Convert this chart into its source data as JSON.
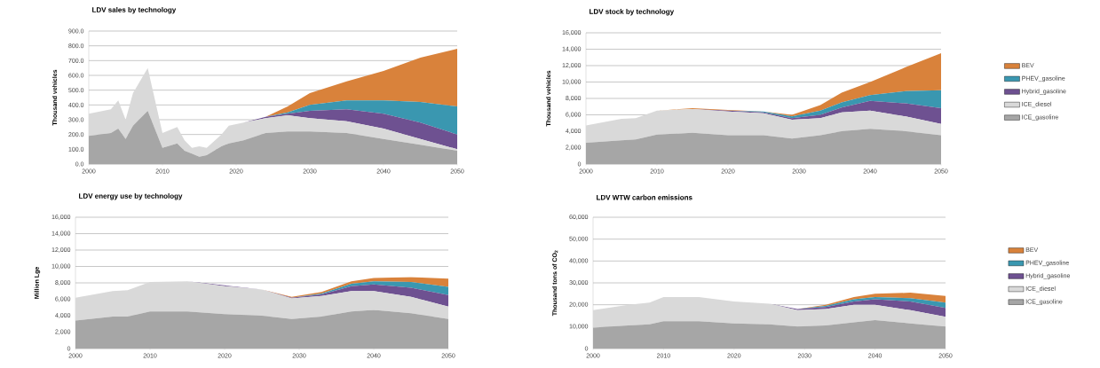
{
  "chart_data": [
    {
      "type": "area",
      "stacked": true,
      "title": "LDV sales by technology",
      "ylabel": "Thousand vehicles",
      "grid": "y",
      "legend": false,
      "x": [
        2000,
        2003,
        2004,
        2005,
        2006,
        2008,
        2010,
        2012,
        2013,
        2014,
        2015,
        2016,
        2018,
        2019,
        2021,
        2024,
        2027,
        2030,
        2035,
        2040,
        2045,
        2050
      ],
      "xlim": [
        2000,
        2050
      ],
      "xticks": [
        2000,
        2010,
        2020,
        2030,
        2040,
        2050
      ],
      "ylim": [
        0,
        900
      ],
      "yticks": [
        {
          "value": 0,
          "label": "0.0"
        },
        {
          "value": 100,
          "label": "100.0"
        },
        {
          "value": 200,
          "label": "200.0"
        },
        {
          "value": 300,
          "label": "300.0"
        },
        {
          "value": 400,
          "label": "400.0"
        },
        {
          "value": 500,
          "label": "500.0"
        },
        {
          "value": 600,
          "label": "600.0"
        },
        {
          "value": 700,
          "label": "700.0"
        },
        {
          "value": 800,
          "label": "800.0"
        },
        {
          "value": 900,
          "label": "900.0"
        }
      ],
      "series": [
        {
          "color": "#a6a6a6",
          "values": [
            190,
            210,
            240,
            170,
            260,
            360,
            110,
            140,
            90,
            70,
            50,
            60,
            120,
            140,
            160,
            210,
            220,
            220,
            210,
            170,
            130,
            90
          ]
        },
        {
          "color": "#d9d9d9",
          "values": [
            150,
            160,
            190,
            130,
            220,
            290,
            100,
            110,
            70,
            40,
            70,
            50,
            80,
            120,
            120,
            100,
            110,
            90,
            80,
            70,
            40,
            10
          ]
        },
        {
          "color": "#6e5191",
          "values": [
            0,
            0,
            0,
            0,
            0,
            0,
            0,
            0,
            0,
            0,
            0,
            0,
            0,
            0,
            0,
            10,
            10,
            50,
            80,
            100,
            110,
            100
          ]
        },
        {
          "color": "#3a97b0",
          "values": [
            0,
            0,
            0,
            0,
            0,
            0,
            0,
            0,
            0,
            0,
            0,
            0,
            0,
            0,
            0,
            0,
            10,
            40,
            60,
            90,
            140,
            190
          ]
        },
        {
          "color": "#d9823b",
          "values": [
            0,
            0,
            0,
            0,
            0,
            0,
            0,
            0,
            0,
            0,
            0,
            0,
            0,
            0,
            0,
            0,
            40,
            80,
            130,
            200,
            300,
            390
          ]
        }
      ]
    },
    {
      "type": "area",
      "stacked": true,
      "title": "LDV stock by technology",
      "ylabel": "Thousand vehicles",
      "grid": "y",
      "legend": "right",
      "x": [
        2000,
        2005,
        2007,
        2010,
        2015,
        2020,
        2025,
        2029,
        2033,
        2036,
        2040,
        2045,
        2050
      ],
      "xlim": [
        2000,
        2050
      ],
      "xticks": [
        2000,
        2010,
        2020,
        2030,
        2040,
        2050
      ],
      "ylim": [
        0,
        16000
      ],
      "yticks": [
        0,
        {
          "value": 2000,
          "label": "2,000"
        },
        {
          "value": 4000,
          "label": "4,000"
        },
        {
          "value": 6000,
          "label": "6,000"
        },
        {
          "value": 8000,
          "label": "8,000"
        },
        {
          "value": 10000,
          "label": "10,000"
        },
        {
          "value": 12000,
          "label": "12,000"
        },
        {
          "value": 14000,
          "label": "14,000"
        },
        {
          "value": 16000,
          "label": "16,000"
        }
      ],
      "series": [
        {
          "name": "ICE_gasoline",
          "color": "#a6a6a6",
          "values": [
            2600,
            2900,
            3000,
            3600,
            3800,
            3500,
            3500,
            3100,
            3500,
            4000,
            4300,
            4000,
            3500
          ]
        },
        {
          "name": "ICE_diesel",
          "color": "#d9d9d9",
          "values": [
            2100,
            2600,
            2600,
            2900,
            2900,
            2900,
            2700,
            2300,
            2100,
            2300,
            2200,
            1800,
            1400
          ]
        },
        {
          "name": "Hybrid_gasoline",
          "color": "#6e5191",
          "values": [
            0,
            0,
            0,
            0,
            0,
            100,
            100,
            200,
            400,
            600,
            1200,
            1600,
            1900
          ]
        },
        {
          "name": "PHEV_gasoline",
          "color": "#3a97b0",
          "values": [
            0,
            0,
            0,
            0,
            0,
            0,
            100,
            200,
            500,
            600,
            700,
            1500,
            2200
          ]
        },
        {
          "name": "BEV",
          "color": "#d9823b",
          "values": [
            0,
            0,
            0,
            0,
            100,
            100,
            0,
            200,
            700,
            1200,
            1600,
            2900,
            4500
          ]
        }
      ]
    },
    {
      "type": "area",
      "stacked": true,
      "title": "LDV energy use by technology",
      "ylabel": "Million Lge",
      "grid": "y",
      "legend": false,
      "x": [
        2000,
        2005,
        2007,
        2010,
        2015,
        2020,
        2025,
        2029,
        2033,
        2037,
        2040,
        2045,
        2050
      ],
      "xlim": [
        2000,
        2050
      ],
      "xticks": [
        2000,
        2010,
        2020,
        2030,
        2040,
        2050
      ],
      "ylim": [
        0,
        16000
      ],
      "yticks": [
        0,
        {
          "value": 2000,
          "label": "2,000"
        },
        {
          "value": 4000,
          "label": "4,000"
        },
        {
          "value": 6000,
          "label": "6,000"
        },
        {
          "value": 8000,
          "label": "8,000"
        },
        {
          "value": 10000,
          "label": "10,000"
        },
        {
          "value": 12000,
          "label": "12,000"
        },
        {
          "value": 14000,
          "label": "14,000"
        },
        {
          "value": 16000,
          "label": "16,000"
        }
      ],
      "series": [
        {
          "color": "#a6a6a6",
          "values": [
            3400,
            3900,
            3900,
            4500,
            4500,
            4200,
            4000,
            3600,
            3900,
            4500,
            4700,
            4300,
            3600
          ]
        },
        {
          "color": "#d9d9d9",
          "values": [
            2800,
            3100,
            3200,
            3600,
            3700,
            3400,
            3200,
            2500,
            2500,
            2500,
            2300,
            2000,
            1500
          ]
        },
        {
          "color": "#6e5191",
          "values": [
            0,
            0,
            0,
            0,
            0,
            100,
            0,
            100,
            200,
            600,
            800,
            1100,
            1400
          ]
        },
        {
          "color": "#3a97b0",
          "values": [
            0,
            0,
            0,
            0,
            0,
            0,
            0,
            0,
            100,
            300,
            400,
            700,
            1000
          ]
        },
        {
          "color": "#d9823b",
          "values": [
            0,
            0,
            0,
            0,
            0,
            0,
            0,
            100,
            200,
            300,
            400,
            600,
            1000
          ]
        }
      ]
    },
    {
      "type": "area",
      "stacked": true,
      "title": "LDV  WTW carbon emissions",
      "ylabel": "Thousand tons of CO$_{2}$",
      "grid": "y",
      "legend": "right",
      "x": [
        2000,
        2005,
        2008,
        2010,
        2015,
        2020,
        2025,
        2029,
        2033,
        2037,
        2040,
        2045,
        2050
      ],
      "xlim": [
        2000,
        2050
      ],
      "xticks": [
        2000,
        2010,
        2020,
        2030,
        2040,
        2050
      ],
      "ylim": [
        0,
        60000
      ],
      "yticks": [
        0,
        {
          "value": 10000,
          "label": "10,000"
        },
        {
          "value": 20000,
          "label": "20,000"
        },
        {
          "value": 30000,
          "label": "30,000"
        },
        {
          "value": 40000,
          "label": "40,000"
        },
        {
          "value": 50000,
          "label": "50,000"
        },
        {
          "value": 60000,
          "label": "60,000"
        }
      ],
      "series": [
        {
          "name": "ICE_gasoline",
          "color": "#a6a6a6",
          "values": [
            9500,
            10500,
            11000,
            12500,
            12500,
            11500,
            11000,
            10000,
            10500,
            12000,
            13000,
            11500,
            10000
          ]
        },
        {
          "name": "ICE_diesel",
          "color": "#d9d9d9",
          "values": [
            8000,
            9500,
            10000,
            11000,
            11000,
            10000,
            9500,
            7500,
            7500,
            8000,
            7000,
            6000,
            4500
          ]
        },
        {
          "name": "Hybrid_gasoline",
          "color": "#6e5191",
          "values": [
            0,
            0,
            0,
            0,
            0,
            0,
            0,
            500,
            1000,
            1500,
            2500,
            4000,
            4000
          ]
        },
        {
          "name": "PHEV_gasoline",
          "color": "#3a97b0",
          "values": [
            0,
            0,
            0,
            0,
            0,
            0,
            0,
            0,
            500,
            1000,
            1000,
            1500,
            2500
          ]
        },
        {
          "name": "BEV",
          "color": "#d9823b",
          "values": [
            0,
            0,
            0,
            0,
            0,
            0,
            0,
            0,
            500,
            1000,
            1500,
            2500,
            3000
          ]
        }
      ]
    }
  ]
}
